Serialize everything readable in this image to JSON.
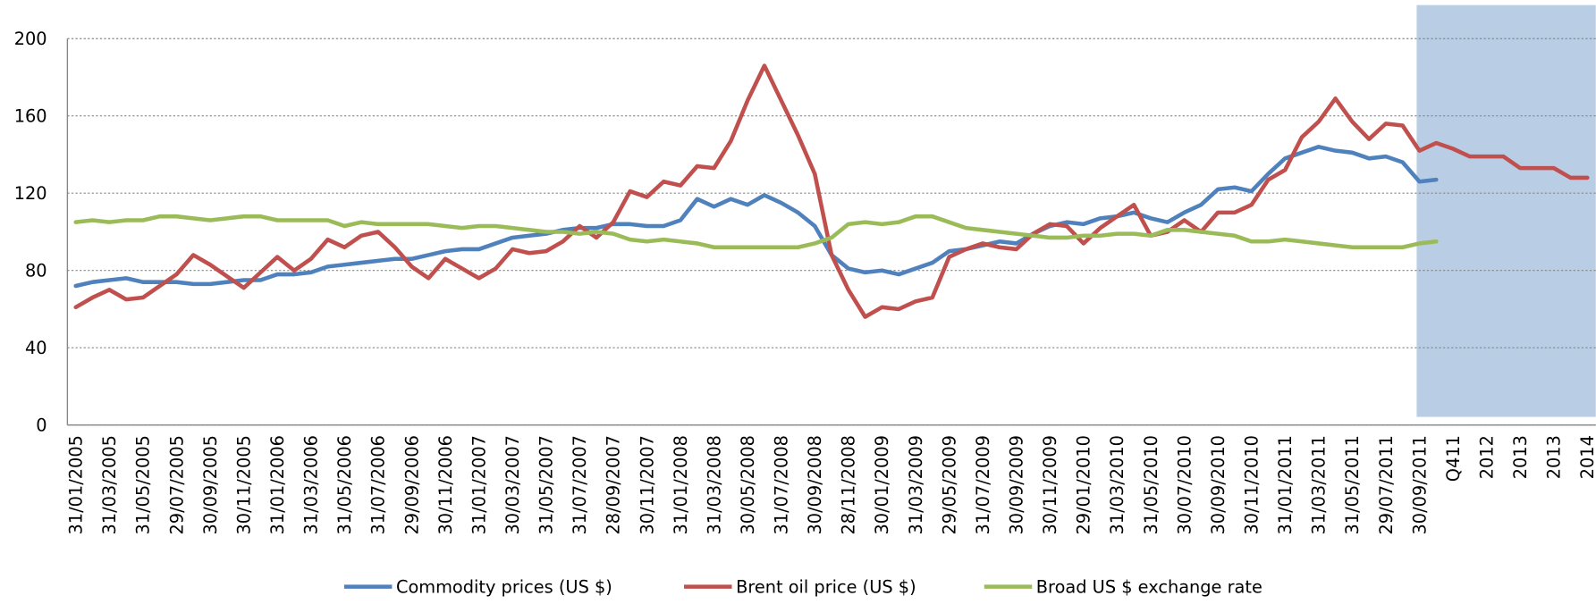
{
  "chart_data": {
    "type": "line",
    "categories": [
      "31/01/2005",
      null,
      "31/03/2005",
      null,
      "31/05/2005",
      null,
      "29/07/2005",
      null,
      "30/09/2005",
      null,
      "30/11/2005",
      null,
      "31/01/2006",
      null,
      "31/03/2006",
      null,
      "31/05/2006",
      null,
      "31/07/2006",
      null,
      "29/09/2006",
      null,
      "30/11/2006",
      null,
      "31/01/2007",
      null,
      "30/03/2007",
      null,
      "31/05/2007",
      null,
      "31/07/2007",
      null,
      "28/09/2007",
      null,
      "30/11/2007",
      null,
      "31/01/2008",
      null,
      "31/03/2008",
      null,
      "30/05/2008",
      null,
      "31/07/2008",
      null,
      "30/09/2008",
      null,
      "28/11/2008",
      null,
      "30/01/2009",
      null,
      "31/03/2009",
      null,
      "29/05/2009",
      null,
      "31/07/2009",
      null,
      "30/09/2009",
      null,
      "30/11/2009",
      null,
      "29/01/2010",
      null,
      "31/03/2010",
      null,
      "31/05/2010",
      null,
      "30/07/2010",
      null,
      "30/09/2010",
      null,
      "30/11/2010",
      null,
      "31/01/2011",
      null,
      "31/03/2011",
      null,
      "31/05/2011",
      null,
      "29/07/2011",
      null,
      "30/09/2011",
      null,
      "Q411",
      null,
      "2012",
      null,
      "2013",
      null,
      "2013",
      null,
      "2014"
    ],
    "series": [
      {
        "name": "Commodity prices (US $)",
        "color": "#4f81bd",
        "values": [
          72,
          74,
          75,
          76,
          74,
          74,
          74,
          73,
          73,
          74,
          75,
          75,
          78,
          78,
          79,
          82,
          83,
          84,
          85,
          86,
          86,
          88,
          90,
          91,
          91,
          94,
          97,
          98,
          99,
          101,
          102,
          102,
          104,
          104,
          103,
          103,
          106,
          117,
          113,
          117,
          114,
          119,
          115,
          110,
          103,
          88,
          81,
          79,
          80,
          78,
          81,
          84,
          90,
          91,
          93,
          95,
          94,
          99,
          103,
          105,
          104,
          107,
          108,
          110,
          107,
          105,
          110,
          114,
          122,
          123,
          121,
          130,
          138,
          141,
          144,
          142,
          141,
          138,
          139,
          136,
          126,
          127,
          null,
          null,
          null,
          null,
          null,
          null,
          null,
          null,
          null
        ]
      },
      {
        "name": "Brent oil price (US $)",
        "color": "#c0504d",
        "values": [
          61,
          66,
          70,
          65,
          66,
          72,
          78,
          88,
          83,
          77,
          71,
          79,
          87,
          80,
          86,
          96,
          92,
          98,
          100,
          92,
          82,
          76,
          86,
          81,
          76,
          81,
          91,
          89,
          90,
          95,
          103,
          97,
          105,
          121,
          118,
          126,
          124,
          134,
          133,
          147,
          168,
          186,
          168,
          150,
          130,
          88,
          70,
          56,
          61,
          60,
          64,
          66,
          87,
          91,
          94,
          92,
          91,
          99,
          104,
          103,
          94,
          102,
          108,
          114,
          98,
          100,
          106,
          100,
          110,
          110,
          114,
          127,
          132,
          149,
          157,
          169,
          157,
          148,
          156,
          155,
          142,
          146,
          143,
          139,
          139,
          139,
          133,
          133,
          133,
          128,
          128
        ]
      },
      {
        "name": "Broad US $ exchange rate",
        "color": "#9bbb59",
        "values": [
          105,
          106,
          105,
          106,
          106,
          108,
          108,
          107,
          106,
          107,
          108,
          108,
          106,
          106,
          106,
          106,
          103,
          105,
          104,
          104,
          104,
          104,
          103,
          102,
          103,
          103,
          102,
          101,
          100,
          100,
          99,
          100,
          99,
          96,
          95,
          96,
          95,
          94,
          92,
          92,
          92,
          92,
          92,
          92,
          94,
          97,
          104,
          105,
          104,
          105,
          108,
          108,
          105,
          102,
          101,
          100,
          99,
          98,
          97,
          97,
          98,
          98,
          99,
          99,
          98,
          101,
          101,
          100,
          99,
          98,
          95,
          95,
          96,
          95,
          94,
          93,
          92,
          92,
          92,
          92,
          94,
          95,
          null,
          null,
          null,
          null,
          null,
          null,
          null,
          null,
          null
        ]
      }
    ],
    "ylim": [
      0,
      200
    ],
    "yticks": [
      0,
      40,
      80,
      120,
      160,
      200
    ],
    "grid": true,
    "legend": "bottom"
  }
}
